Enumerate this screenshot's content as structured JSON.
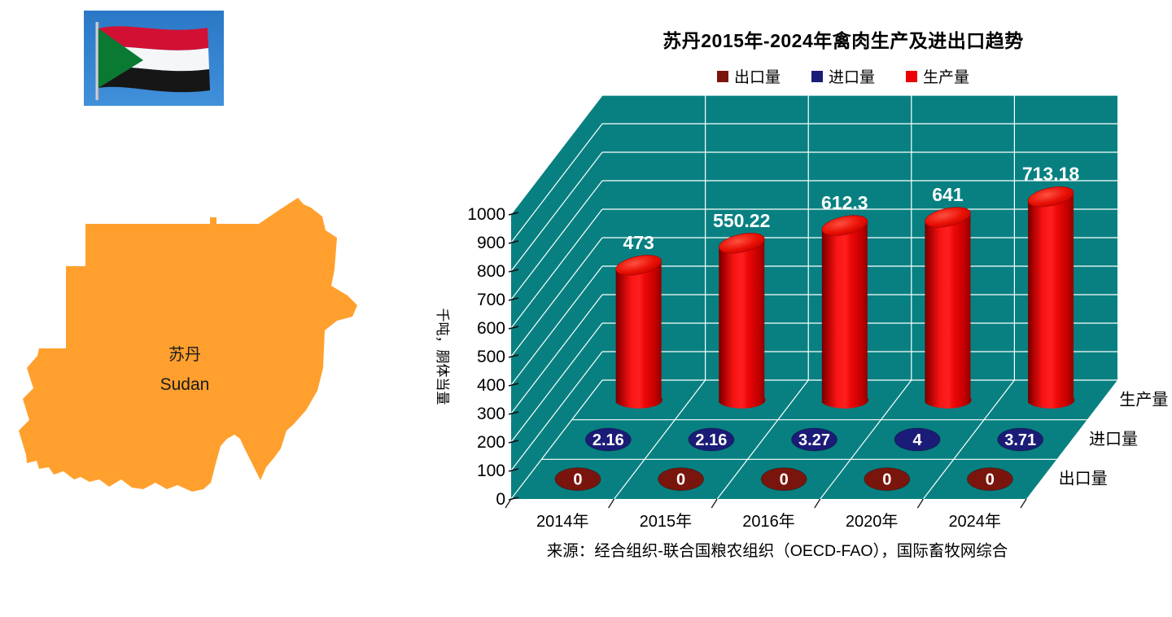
{
  "flag": {
    "name": "sudan-flag",
    "sky": "#2f7ecb",
    "sky_light": "#3f8cd8",
    "red": "#d21034",
    "white": "#f5f6f8",
    "black": "#161616",
    "green": "#0a7a33",
    "pole": "#c9cfd6"
  },
  "map": {
    "label_zh": "苏丹",
    "label_en": "Sudan",
    "fill": "#ffa02e"
  },
  "source_note": "来源：经合组织-联合国粮农组织（OECD-FAO），国际畜牧网综合",
  "chart_data": {
    "type": "bar",
    "subtype": "3d-cylinder",
    "title": "苏丹2015年-2024年禽肉生产及进出口趋势",
    "categories": [
      "2014年",
      "2015年",
      "2016年",
      "2020年",
      "2024年"
    ],
    "series": [
      {
        "name": "出口量",
        "color": "#7a150d",
        "values": [
          0,
          0,
          0,
          0,
          0
        ]
      },
      {
        "name": "进口量",
        "color": "#1b1b78",
        "values": [
          2.16,
          2.16,
          3.27,
          4,
          3.71
        ]
      },
      {
        "name": "生产量",
        "color": "#ec0202",
        "values": [
          473,
          550.22,
          612.3,
          641,
          713.18
        ]
      }
    ],
    "ylabel": "千吨，胴体当量",
    "ylim": [
      0,
      1000
    ],
    "ytick_step": 100,
    "legend_position": "top",
    "grid": true,
    "wall_color": "#088081",
    "grid_color": "#ffffff",
    "label_color": "#ffffff",
    "axis_text_color": "#000000"
  }
}
